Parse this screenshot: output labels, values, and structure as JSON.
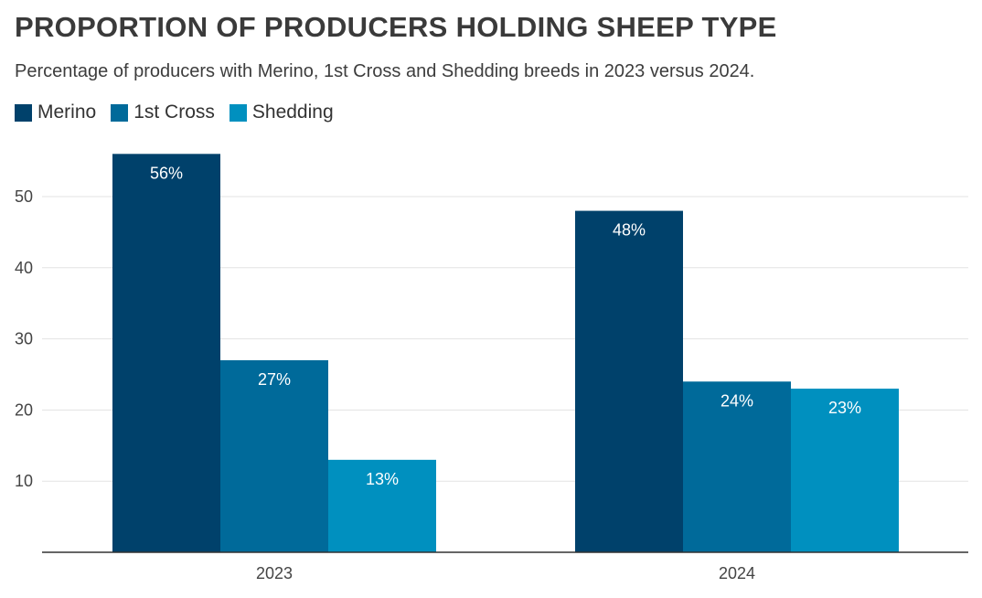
{
  "header": {
    "title": "PROPORTION OF PRODUCERS HOLDING SHEEP TYPE",
    "subtitle": "Percentage of producers with Merino, 1st Cross and Shedding breeds in 2023 versus 2024."
  },
  "colors": {
    "merino": "#00416b",
    "cross": "#006a9a",
    "shedding": "#0090bf",
    "grid": "#e3e3e3",
    "axis": "#333333"
  },
  "chart_data": {
    "type": "bar",
    "title": "PROPORTION OF PRODUCERS HOLDING SHEEP TYPE",
    "subtitle": "Percentage of producers with Merino, 1st Cross and Shedding breeds in 2023 versus 2024.",
    "categories": [
      "2023",
      "2024"
    ],
    "series": [
      {
        "name": "Merino",
        "color": "#00416b",
        "values": [
          56,
          48
        ],
        "labels": [
          "56%",
          "48%"
        ]
      },
      {
        "name": "1st Cross",
        "color": "#006a9a",
        "values": [
          27,
          24
        ],
        "labels": [
          "27%",
          "24%"
        ]
      },
      {
        "name": "Shedding",
        "color": "#0090bf",
        "values": [
          13,
          23
        ],
        "labels": [
          "13%",
          "23%"
        ]
      }
    ],
    "yticks": [
      10,
      20,
      30,
      40,
      50
    ],
    "ylim": [
      0,
      57
    ],
    "xlabel": "",
    "ylabel": "",
    "legend": "top-left",
    "grid": true
  }
}
